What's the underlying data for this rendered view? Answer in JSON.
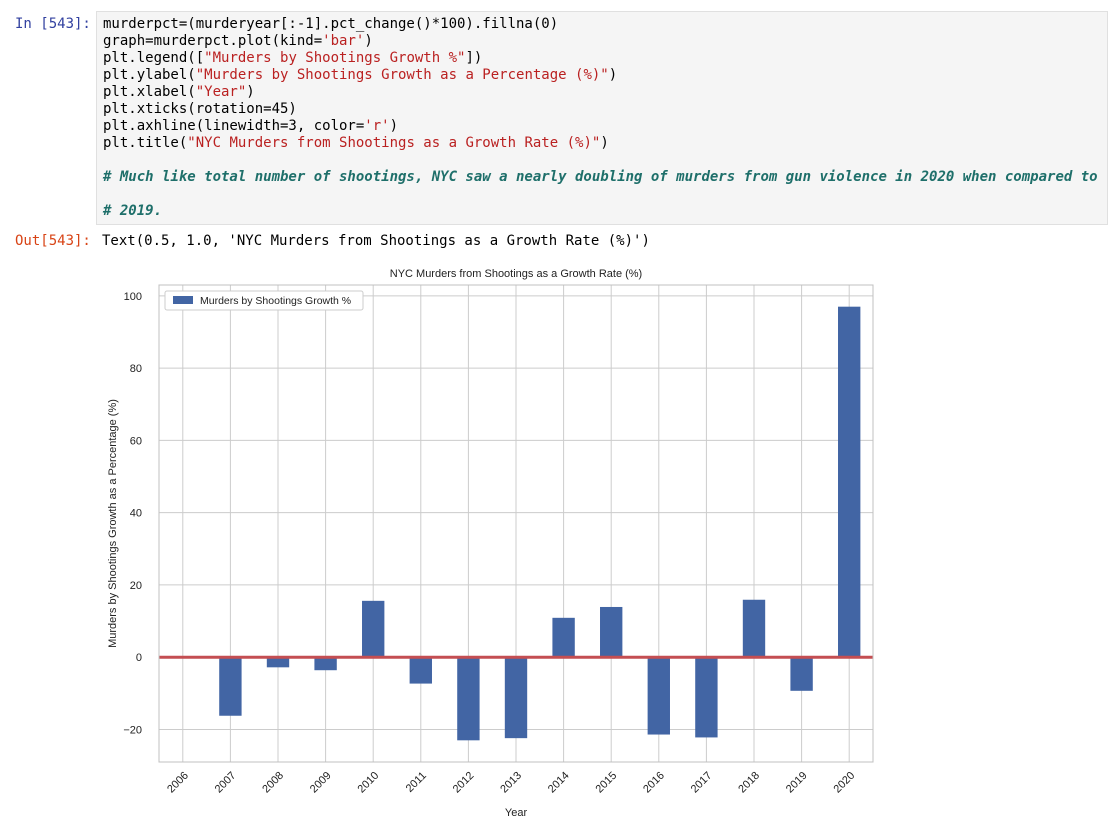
{
  "cell_in": {
    "prompt": "In [543]:",
    "code_lines": [
      {
        "parts": [
          {
            "t": "murderpct=(murderyear[:-1].pct_change()*100).fillna(0)",
            "c": "kw"
          }
        ]
      },
      {
        "parts": [
          {
            "t": "graph=murderpct.plot(kind=",
            "c": "kw"
          },
          {
            "t": "'bar'",
            "c": "str"
          },
          {
            "t": ")",
            "c": "kw"
          }
        ]
      },
      {
        "parts": [
          {
            "t": "plt.legend([",
            "c": "kw"
          },
          {
            "t": "\"Murders by Shootings Growth %\"",
            "c": "str"
          },
          {
            "t": "])",
            "c": "kw"
          }
        ]
      },
      {
        "parts": [
          {
            "t": "plt.ylabel(",
            "c": "kw"
          },
          {
            "t": "\"Murders by Shootings Growth as a Percentage (%)\"",
            "c": "str"
          },
          {
            "t": ")",
            "c": "kw"
          }
        ]
      },
      {
        "parts": [
          {
            "t": "plt.xlabel(",
            "c": "kw"
          },
          {
            "t": "\"Year\"",
            "c": "str"
          },
          {
            "t": ")",
            "c": "kw"
          }
        ]
      },
      {
        "parts": [
          {
            "t": "plt.xticks(rotation=45)",
            "c": "kw"
          }
        ]
      },
      {
        "parts": [
          {
            "t": "plt.axhline(linewidth=3, color=",
            "c": "kw"
          },
          {
            "t": "'r'",
            "c": "str"
          },
          {
            "t": ")",
            "c": "kw"
          }
        ]
      },
      {
        "parts": [
          {
            "t": "plt.title(",
            "c": "kw"
          },
          {
            "t": "\"NYC Murders from Shootings as a Growth Rate (%)\"",
            "c": "str"
          },
          {
            "t": ")",
            "c": "kw"
          }
        ]
      },
      {
        "parts": []
      },
      {
        "parts": [
          {
            "t": "# Much like total number of shootings, NYC saw a nearly doubling of murders from gun violence in 2020 when compared to",
            "c": "cm"
          }
        ]
      },
      {
        "parts": []
      },
      {
        "parts": [
          {
            "t": "# 2019.",
            "c": "cm"
          }
        ]
      }
    ]
  },
  "cell_out": {
    "prompt": "Out[543]:",
    "text": "Text(0.5, 1.0, 'NYC Murders from Shootings as a Growth Rate (%)')"
  },
  "chart_data": {
    "type": "bar",
    "title": "NYC Murders from Shootings as a Growth Rate (%)",
    "xlabel": "Year",
    "ylabel": "Murders by Shootings Growth as a Percentage (%)",
    "categories": [
      "2006",
      "2007",
      "2008",
      "2009",
      "2010",
      "2011",
      "2012",
      "2013",
      "2014",
      "2015",
      "2016",
      "2017",
      "2018",
      "2019",
      "2020"
    ],
    "series": [
      {
        "name": "Murders by Shootings Growth %",
        "values": [
          0,
          -16.2,
          -2.8,
          -3.6,
          15.6,
          -7.3,
          -23.0,
          -22.4,
          10.9,
          13.9,
          -21.4,
          -22.2,
          15.9,
          -9.3,
          97.0
        ]
      }
    ],
    "ylim": [
      -29,
      103
    ],
    "yticks": [
      -20,
      0,
      20,
      40,
      60,
      80,
      100
    ],
    "ytick_labels": [
      "−20",
      "0",
      "20",
      "40",
      "60",
      "80",
      "100"
    ],
    "grid": true,
    "legend_position": "upper-left",
    "axhline": {
      "y": 0,
      "color": "#c44e52"
    },
    "bar_color": "#4265a4",
    "x_tick_rotation": 45
  }
}
